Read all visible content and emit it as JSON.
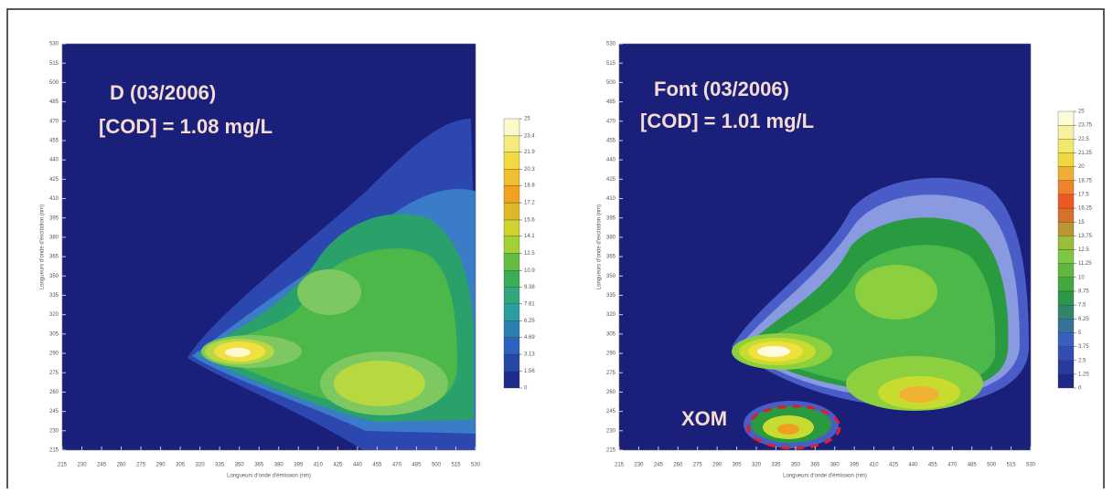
{
  "chart_data": [
    {
      "type": "contour",
      "title": "D (03/2006)",
      "subtitle": "[COD] = 1.08 mg/L",
      "xlabel": "Longueurs d'onde d'émission (nm)",
      "ylabel": "Longueurs d'onde d'excitation (nm)",
      "xlim": [
        215,
        530
      ],
      "ylim": [
        215,
        530
      ],
      "xticks": [
        215,
        230,
        245,
        260,
        275,
        290,
        305,
        320,
        335,
        350,
        365,
        380,
        395,
        410,
        425,
        440,
        455,
        470,
        485,
        500,
        515,
        530
      ],
      "yticks": [
        215,
        230,
        245,
        260,
        275,
        290,
        305,
        320,
        335,
        350,
        365,
        380,
        395,
        410,
        425,
        440,
        455,
        470,
        485,
        500,
        515,
        530
      ],
      "colorbar_ticks": [
        0,
        1.56,
        3.13,
        4.69,
        6.25,
        7.81,
        9.38,
        10.9,
        12.5,
        14.1,
        15.6,
        17.2,
        18.8,
        20.3,
        21.9,
        23.4,
        25
      ],
      "colormap": [
        "#1a1f7a",
        "#2a5cc0",
        "#2aa0a0",
        "#3cb048",
        "#c8dc30",
        "#f0a020",
        "#f0e040",
        "#fffff0"
      ]
    },
    {
      "type": "contour",
      "title": "Font (03/2006)",
      "subtitle": "[COD] = 1.01 mg/L",
      "xlabel": "Longueurs d'onde d'émission (nm)",
      "ylabel": "Longueurs d'onde d'excitation (nm)",
      "xlim": [
        215,
        530
      ],
      "ylim": [
        215,
        530
      ],
      "xticks": [
        215,
        230,
        245,
        260,
        275,
        290,
        305,
        320,
        335,
        350,
        365,
        380,
        395,
        410,
        425,
        440,
        455,
        470,
        485,
        500,
        515,
        530
      ],
      "yticks": [
        215,
        230,
        245,
        260,
        275,
        290,
        305,
        320,
        335,
        350,
        365,
        380,
        395,
        410,
        425,
        440,
        455,
        470,
        485,
        500,
        515,
        530
      ],
      "colorbar_ticks": [
        0,
        1.25,
        2.5,
        3.75,
        5,
        6.25,
        7.5,
        8.75,
        10,
        11.25,
        12.5,
        13.75,
        15,
        16.25,
        17.5,
        18.75,
        20,
        21.25,
        22.5,
        23.75,
        25
      ],
      "colormap": [
        "#1a1f7a",
        "#3a5cc8",
        "#2a9a40",
        "#8cd040",
        "#f05020",
        "#f0e040",
        "#fffff0"
      ],
      "annotation": "XOM"
    }
  ]
}
